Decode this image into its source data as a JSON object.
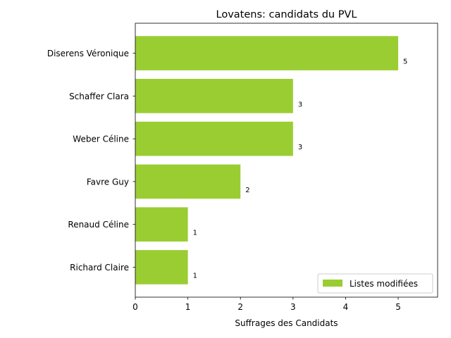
{
  "chart_data": {
    "type": "bar",
    "orientation": "horizontal",
    "title": "Lovatens: candidats du PVL",
    "xlabel": "Suffrages des Candidats",
    "ylabel": "",
    "categories": [
      "Diserens Véronique",
      "Schaffer Clara",
      "Weber Céline",
      "Favre Guy",
      "Renaud Céline",
      "Richard Claire"
    ],
    "series": [
      {
        "name": "Listes modifiées",
        "values": [
          5,
          3,
          3,
          2,
          1,
          1
        ],
        "color": "#9acd32"
      }
    ],
    "xlim": [
      0,
      5.75
    ],
    "xticks": [
      0,
      1,
      2,
      3,
      4,
      5
    ],
    "grid": false,
    "legend_position": "lower-right"
  }
}
